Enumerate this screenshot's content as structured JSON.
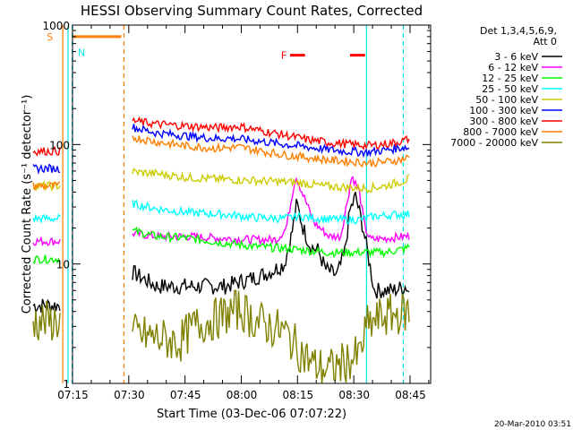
{
  "chart_data": {
    "type": "line",
    "title": "HESSI Observing Summary Count Rates, Corrected",
    "xlabel": "Start Time (03-Dec-06 07:07:22)",
    "ylabel": "Corrected Count Rate (s⁻¹ detector⁻¹)",
    "yscale": "log",
    "ylim": [
      1,
      1000
    ],
    "xlim_minutes": [
      7.5,
      103
    ],
    "x_ticks": [
      {
        "label": "07:15",
        "m": 7.63
      },
      {
        "label": "07:30",
        "m": 22.63
      },
      {
        "label": "07:45",
        "m": 37.63
      },
      {
        "label": "08:00",
        "m": 52.63
      },
      {
        "label": "08:15",
        "m": 67.63
      },
      {
        "label": "08:30",
        "m": 82.63
      },
      {
        "label": "08:45",
        "m": 97.63
      }
    ],
    "y_ticks": [
      {
        "label": "1",
        "v": 1
      },
      {
        "label": "10",
        "v": 10
      },
      {
        "label": "100",
        "v": 100
      },
      {
        "label": "1000",
        "v": 1000
      }
    ],
    "legend_header": [
      "Det 1,3,4,5,6,9,",
      "Att 0"
    ],
    "legend_position": "right",
    "grid": false,
    "flags": [
      {
        "label": "S",
        "color": "#ff7f00",
        "start_m": 3.5,
        "end_m": 20.5,
        "value": 800
      },
      {
        "label": "N",
        "color": "#00e5ee",
        "start_m": -3,
        "end_m": 6.5,
        "value": 680
      },
      {
        "label": "F",
        "color": "#ff0000",
        "segments": [
          [
            65.5,
            69.5
          ],
          [
            81.5,
            85.5
          ]
        ],
        "value": 560
      }
    ],
    "vlines": [
      {
        "m": 4.9,
        "color": "#ff7f00",
        "style": "solid"
      },
      {
        "m": 6.3,
        "color": "#00e5ee",
        "style": "solid"
      },
      {
        "m": 7.4,
        "color": "#00e5ee",
        "style": "dashed"
      },
      {
        "m": 21.2,
        "color": "#ff7f00",
        "style": "dashed"
      },
      {
        "m": 85.9,
        "color": "#00e5ee",
        "style": "solid"
      },
      {
        "m": 95.7,
        "color": "#00e5ee",
        "style": "dashed"
      }
    ],
    "series": [
      {
        "name": "3 - 6 keV",
        "color": "#000000",
        "segments": [
          {
            "x": [
              -3,
              4.2
            ],
            "y": [
              4.5,
              4.5
            ]
          },
          {
            "x": [
              23.5,
              30,
              38,
              48,
              55,
              60,
              64,
              66,
              67.3,
              69,
              71,
              73,
              75,
              78,
              80,
              81.5,
              83,
              85,
              86.5,
              88,
              93,
              96.5,
              97.3
            ],
            "y": [
              8.5,
              6.5,
              6.5,
              6.5,
              7.5,
              8.5,
              10,
              18,
              32,
              20,
              14,
              13,
              9,
              8,
              12,
              28,
              37,
              20,
              11,
              6,
              6,
              6.5,
              5.8
            ]
          }
        ]
      },
      {
        "name": "6 - 12 keV",
        "color": "#ff00ff",
        "segments": [
          {
            "x": [
              -3,
              4.2
            ],
            "y": [
              15.5,
              15.5
            ]
          },
          {
            "x": [
              23.5,
              30,
              38,
              46,
              55,
              62,
              64.5,
              67,
              69,
              72,
              76,
              79,
              80.5,
              82,
              84,
              85.5,
              87,
              92,
              96.5,
              97.3
            ],
            "y": [
              18,
              17,
              17,
              16.5,
              16,
              16,
              20,
              55,
              38,
              22,
              17,
              17,
              30,
              55,
              40,
              20,
              16,
              16.5,
              17,
              17
            ]
          }
        ]
      },
      {
        "name": "12 - 25 keV",
        "color": "#00ff00",
        "segments": [
          {
            "x": [
              -3,
              4.2
            ],
            "y": [
              11,
              11
            ]
          },
          {
            "x": [
              23.5,
              30,
              38,
              48,
              56,
              64,
              70,
              76,
              82,
              86,
              91,
              96.5,
              97.3
            ],
            "y": [
              19,
              17,
              16.5,
              15,
              14,
              13.5,
              13,
              12.5,
              12.5,
              12.5,
              12.5,
              13.5,
              14
            ]
          }
        ]
      },
      {
        "name": "25 - 50 keV",
        "color": "#00ffff",
        "segments": [
          {
            "x": [
              -3,
              4.2
            ],
            "y": [
              24,
              24
            ]
          },
          {
            "x": [
              23.5,
              30,
              38,
              48,
              56,
              64,
              68,
              74,
              80,
              84,
              88,
              94,
              97.3
            ],
            "y": [
              32,
              29,
              27,
              26,
              24.5,
              24,
              25,
              24,
              23.5,
              23.5,
              25,
              26,
              26
            ]
          }
        ]
      },
      {
        "name": "50 - 100 keV",
        "color": "#cccc00",
        "segments": [
          {
            "x": [
              -3,
              4.2
            ],
            "y": [
              45,
              45
            ]
          },
          {
            "x": [
              23.5,
              30,
              38,
              48,
              56,
              62,
              68,
              74,
              80,
              86,
              91,
              96,
              97.3
            ],
            "y": [
              59,
              57,
              53,
              51,
              50,
              49,
              48,
              45,
              44,
              43,
              45,
              50,
              52
            ]
          }
        ]
      },
      {
        "name": "100 - 300 keV",
        "color": "#0000ff",
        "segments": [
          {
            "x": [
              -3,
              4.2
            ],
            "y": [
              63,
              63
            ]
          },
          {
            "x": [
              23.5,
              30,
              38,
              46,
              50,
              56,
              62,
              68,
              74,
              80,
              86,
              91,
              96,
              97.3
            ],
            "y": [
              140,
              125,
              118,
              112,
              113,
              108,
              102,
              97,
              92,
              88,
              86,
              90,
              95,
              93
            ]
          }
        ]
      },
      {
        "name": "300 - 800 keV",
        "color": "#ff0000",
        "segments": [
          {
            "x": [
              -3,
              4.2
            ],
            "y": [
              88,
              88
            ]
          },
          {
            "x": [
              23.5,
              30,
              38,
              46,
              52,
              58,
              64,
              70,
              76,
              82,
              87,
              92,
              96,
              97.3
            ],
            "y": [
              158,
              148,
              143,
              138,
              142,
              130,
              120,
              110,
              104,
              100,
              98,
              102,
              108,
              112
            ]
          }
        ]
      },
      {
        "name": "800 - 7000 keV",
        "color": "#ff7f00",
        "segments": [
          {
            "x": [
              -3,
              4.2
            ],
            "y": [
              45,
              45
            ]
          },
          {
            "x": [
              23.5,
              30,
              38,
              46,
              52,
              58,
              64,
              70,
              76,
              82,
              87,
              92,
              96,
              97.3
            ],
            "y": [
              115,
              105,
              97,
              93,
              95,
              88,
              82,
              78,
              74,
              72,
              70,
              72,
              76,
              78
            ]
          }
        ]
      },
      {
        "name": "7000 - 20000 keV",
        "color": "#808000",
        "segments": [
          {
            "x": [
              -3,
              4.2
            ],
            "y": [
              3.3,
              3.3
            ]
          },
          {
            "x": [
              23.5,
              30,
              36,
              40,
              46,
              52,
              56,
              60,
              64,
              68,
              72,
              76,
              80,
              84,
              86,
              90,
              96,
              97.3
            ],
            "y": [
              2.6,
              2.4,
              2.2,
              3.0,
              3.5,
              4.2,
              3.4,
              3.0,
              2.7,
              1.9,
              1.4,
              1.3,
              1.5,
              1.7,
              3.0,
              3.6,
              3.9,
              4.0
            ]
          }
        ]
      }
    ]
  },
  "footer": {
    "date": "20-Mar-2010 03:51"
  }
}
